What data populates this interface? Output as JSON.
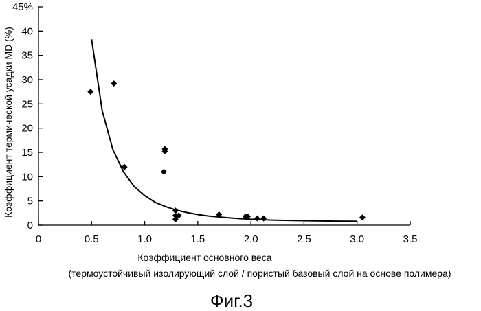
{
  "chart_data": {
    "type": "scatter",
    "ylabel": "Коэффициент термической усадки MD (%)",
    "xlabel": "Коэффициент основного веса",
    "xlabel_sub": "(термоустойчивый изолирующий слой / пористый базовый слой на основе полимера)",
    "caption": "Фиг.3",
    "xlim": [
      0,
      3.5
    ],
    "ylim": [
      0,
      45
    ],
    "x_ticks": [
      "0",
      "0.5",
      "1.0",
      "1.5",
      "2.0",
      "2.5",
      "3.0",
      "3.5"
    ],
    "y_ticks": [
      "0",
      "5",
      "10",
      "15",
      "20",
      "25",
      "30",
      "35",
      "40",
      "45%"
    ],
    "grid": false,
    "points": [
      {
        "x": 0.49,
        "y": 27.5
      },
      {
        "x": 0.71,
        "y": 29.2
      },
      {
        "x": 0.81,
        "y": 12.0
      },
      {
        "x": 1.18,
        "y": 11.0
      },
      {
        "x": 1.19,
        "y": 15.2
      },
      {
        "x": 1.19,
        "y": 15.7
      },
      {
        "x": 1.29,
        "y": 3.0
      },
      {
        "x": 1.29,
        "y": 2.0
      },
      {
        "x": 1.29,
        "y": 1.2
      },
      {
        "x": 1.32,
        "y": 2.0
      },
      {
        "x": 1.7,
        "y": 2.2
      },
      {
        "x": 1.95,
        "y": 1.8
      },
      {
        "x": 1.97,
        "y": 1.8
      },
      {
        "x": 2.06,
        "y": 1.4
      },
      {
        "x": 2.12,
        "y": 1.4
      },
      {
        "x": 3.05,
        "y": 1.6
      }
    ],
    "trendline": {
      "type": "power",
      "x": [
        0.5,
        0.6,
        0.7,
        0.8,
        0.9,
        1.0,
        1.1,
        1.2,
        1.3,
        1.4,
        1.5,
        1.6,
        1.7,
        1.8,
        1.9,
        2.0,
        2.2,
        2.4,
        2.6,
        2.8,
        3.0
      ],
      "y": [
        38.3,
        23.6,
        15.6,
        11.0,
        8.0,
        6.1,
        4.7,
        3.8,
        3.1,
        2.6,
        2.2,
        1.9,
        1.7,
        1.5,
        1.35,
        1.22,
        1.05,
        0.95,
        0.88,
        0.83,
        0.8
      ]
    }
  }
}
